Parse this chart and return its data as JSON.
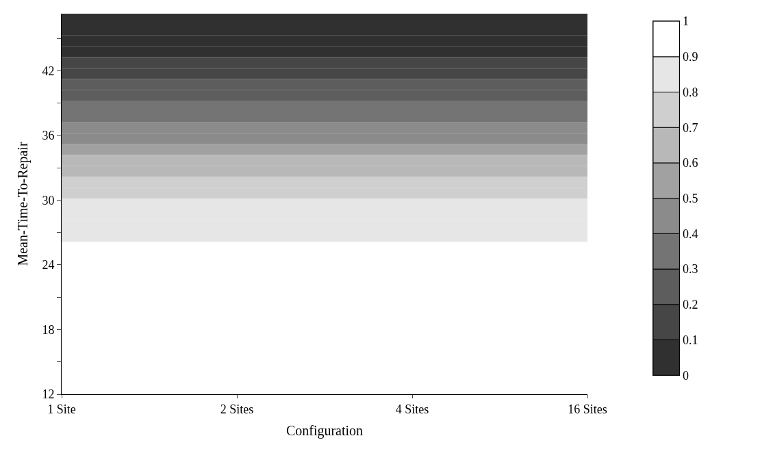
{
  "chart_data": {
    "type": "heatmap",
    "xlabel": "Configuration",
    "ylabel": "Mean-Time-To-Repair",
    "categories": [
      "1 Site",
      "2 Sites",
      "4 Sites",
      "16 Sites"
    ],
    "ylim": [
      12,
      47.3
    ],
    "yticks": [
      12,
      {
        "value": 15,
        "label": null
      },
      18,
      {
        "value": 21,
        "label": null
      },
      24,
      {
        "value": 27,
        "label": null
      },
      30,
      {
        "value": 33,
        "label": null
      },
      36,
      {
        "value": 39,
        "label": null
      },
      42,
      {
        "value": 45,
        "label": null
      }
    ],
    "clim": [
      0,
      1
    ],
    "cticks": [
      0,
      0.1,
      0.2,
      0.3,
      0.4,
      0.5,
      0.6,
      0.7,
      0.8,
      0.9,
      1
    ],
    "cells": [
      [
        0.03,
        0.03,
        0.03,
        0.03
      ],
      [
        0.05,
        0.05,
        0.05,
        0.05
      ],
      [
        0.07,
        0.07,
        0.07,
        0.07
      ],
      [
        0.08,
        0.08,
        0.08,
        0.08
      ],
      [
        0.13,
        0.13,
        0.13,
        0.13
      ],
      [
        0.17,
        0.17,
        0.17,
        0.17
      ],
      [
        0.21,
        0.21,
        0.21,
        0.21
      ],
      [
        0.26,
        0.26,
        0.26,
        0.26
      ],
      [
        0.3,
        0.3,
        0.3,
        0.3
      ],
      [
        0.36,
        0.36,
        0.36,
        0.36
      ],
      [
        0.42,
        0.42,
        0.42,
        0.42
      ],
      [
        0.48,
        0.48,
        0.48,
        0.48
      ],
      [
        0.55,
        0.55,
        0.55,
        0.55
      ],
      [
        0.63,
        0.63,
        0.63,
        0.63
      ],
      [
        0.68,
        0.68,
        0.68,
        0.68
      ],
      [
        0.74,
        0.74,
        0.74,
        0.74
      ],
      [
        0.78,
        0.78,
        0.78,
        0.78
      ],
      [
        0.82,
        0.82,
        0.82,
        0.82
      ],
      [
        0.85,
        0.85,
        0.85,
        0.85
      ],
      [
        0.87,
        0.87,
        0.87,
        0.87
      ],
      [
        0.88,
        0.88,
        0.88,
        0.88
      ],
      [
        1,
        1,
        1,
        1
      ],
      [
        1,
        1,
        1,
        1
      ],
      [
        1,
        1,
        1,
        1
      ],
      [
        1,
        1,
        1,
        1
      ],
      [
        1,
        1,
        1,
        1
      ],
      [
        1,
        1,
        1,
        1
      ],
      [
        1,
        1,
        1,
        1
      ],
      [
        1,
        1,
        1,
        1
      ],
      [
        1,
        1,
        1,
        1
      ],
      [
        1,
        1,
        1,
        1
      ],
      [
        1,
        1,
        1,
        1
      ],
      [
        1,
        1,
        1,
        1
      ],
      [
        1,
        1,
        1,
        1
      ],
      [
        1,
        1,
        1,
        1
      ]
    ]
  }
}
